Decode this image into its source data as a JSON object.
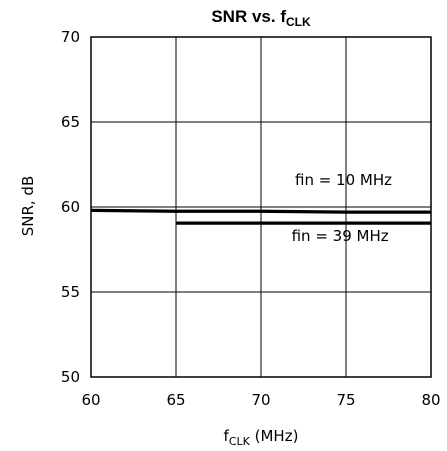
{
  "chart_data": {
    "type": "line",
    "title": "SNR vs. f",
    "title_sub": "CLK",
    "xlabel": "f",
    "xlabel_sub": "CLK",
    "xlabel_suffix": " (MHz)",
    "ylabel": "SNR, dB",
    "xlim": [
      60,
      80
    ],
    "ylim": [
      50,
      70
    ],
    "xticks": [
      "60",
      "65",
      "70",
      "75",
      "80"
    ],
    "yticks": [
      "70",
      "65",
      "60",
      "55",
      "50"
    ],
    "grid": true,
    "series": [
      {
        "name": "fin = 10 MHz",
        "x": [
          60,
          65,
          70,
          75,
          80
        ],
        "y": [
          59.8,
          59.75,
          59.75,
          59.7,
          59.7
        ]
      },
      {
        "name": "fin = 39 MHz",
        "x": [
          65,
          70,
          75,
          80
        ],
        "y": [
          59.05,
          59.05,
          59.05,
          59.05
        ]
      }
    ],
    "annotations": [
      {
        "text": "fin = 10 MHz",
        "x": 72,
        "y": 61.3
      },
      {
        "text": "fin = 39 MHz",
        "x": 71.8,
        "y": 58.0
      }
    ]
  }
}
